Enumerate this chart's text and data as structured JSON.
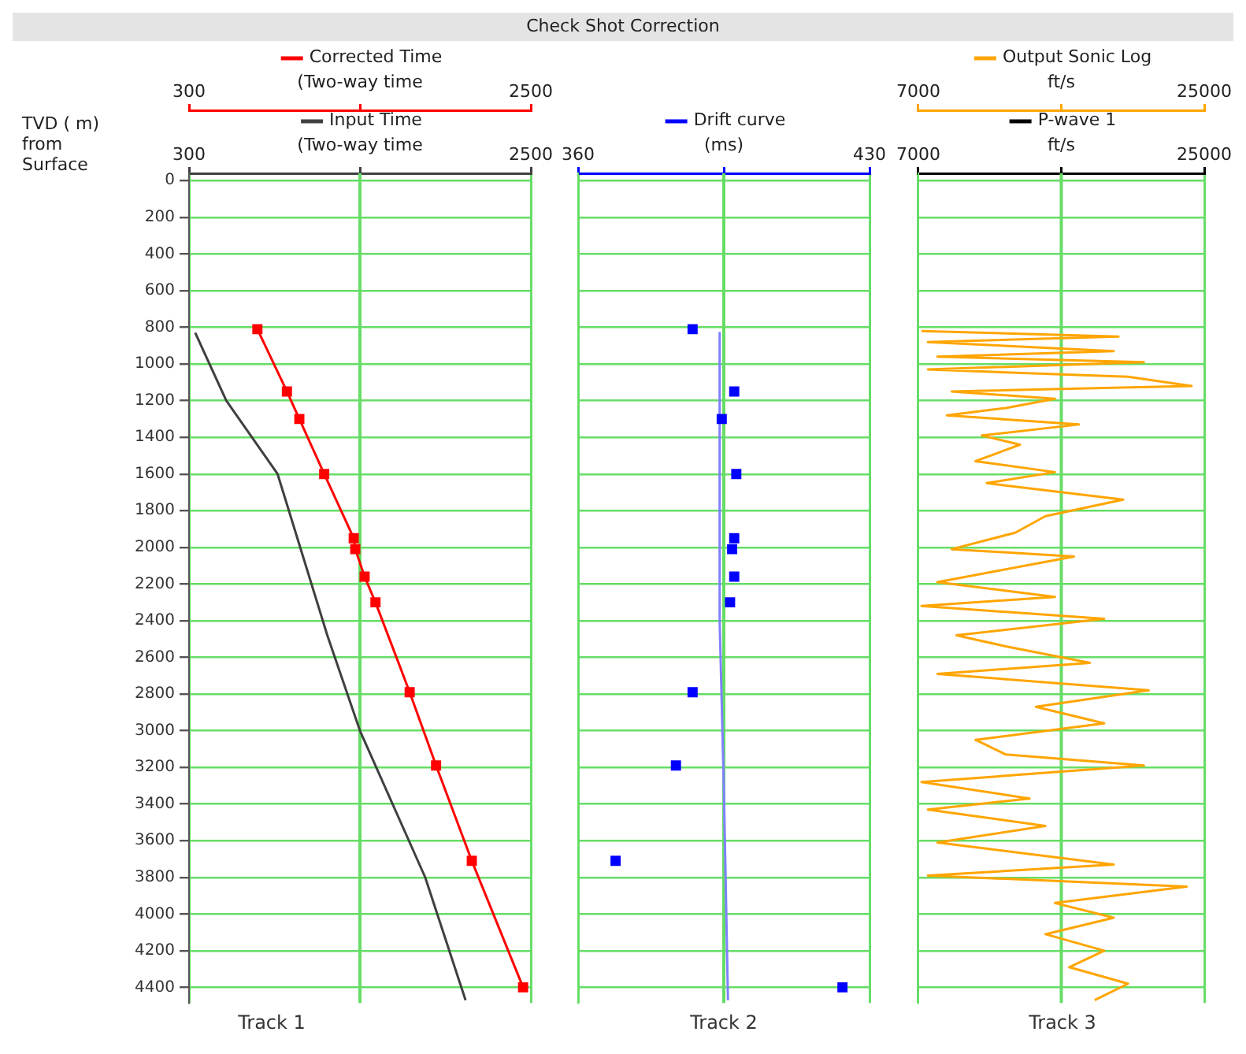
{
  "chart_data": [
    {
      "type": "line",
      "title": "Track 1",
      "ylabel": "TVD ( m) from Surface",
      "annotations": [
        "Check Shot Correction"
      ],
      "legend": "top",
      "grid": true,
      "ylim": [
        4485,
        -40
      ],
      "yticks": [
        0,
        200,
        400,
        600,
        800,
        1000,
        1200,
        1400,
        1600,
        1800,
        2000,
        2200,
        2400,
        2600,
        2800,
        3000,
        3200,
        3400,
        3600,
        3800,
        4000,
        4200,
        4400
      ],
      "ref_lines": [
        {
          "axis": "x",
          "value": 1400,
          "color": "#66dd66"
        }
      ],
      "xlim": [
        300,
        2500
      ],
      "xticks": [
        300,
        {
          "value": 1400,
          "label": null
        },
        2500
      ],
      "xlabel": "(Two-way time",
      "x2lim": [
        300,
        2500
      ],
      "x2ticks": [
        300,
        {
          "value": 1400,
          "label": null
        },
        2500
      ],
      "x2label": "(Two-way time",
      "series": [
        {
          "name": "Corrected Time",
          "type": "line",
          "axis": "x2",
          "color": "#ff0000",
          "marker": "square",
          "x": [
            740,
            930,
            1010,
            1170,
            1360,
            1370,
            1430,
            1500,
            1720,
            1890,
            2120,
            2450
          ],
          "values": [
            810,
            1150,
            1300,
            1600,
            1950,
            2010,
            2160,
            2300,
            2790,
            3190,
            3710,
            4400
          ]
        },
        {
          "name": "Input Time",
          "type": "line",
          "color": "#404040",
          "marker": "none",
          "x": [
            340,
            540,
            870,
            1190,
            1400,
            1820,
            2080
          ],
          "values": [
            830,
            1200,
            1600,
            2480,
            3000,
            3800,
            4470
          ]
        }
      ]
    },
    {
      "type": "line",
      "title": "Track 2",
      "legend": "top",
      "grid": true,
      "tick_labels": "x",
      "ylim": [
        4485,
        -40
      ],
      "yticks": [
        0,
        200,
        400,
        600,
        800,
        1000,
        1200,
        1400,
        1600,
        1800,
        2000,
        2200,
        2400,
        2600,
        2800,
        3000,
        3200,
        3400,
        3600,
        3800,
        4000,
        4200,
        4400
      ],
      "ref_lines": [
        {
          "axis": "x",
          "value": 395,
          "color": "#66dd66"
        }
      ],
      "xlim": [
        360,
        430
      ],
      "xticks": [
        360,
        {
          "value": 395,
          "label": null
        },
        430
      ],
      "xlabel": "(ms)",
      "series": [
        {
          "name": "Drift curve",
          "type": "scatter",
          "color": "#0000ff",
          "marker": "square",
          "x": [
            387.5,
            397.5,
            394.5,
            398,
            397.5,
            397,
            397.5,
            396.5,
            387.5,
            383.5,
            369,
            423.5
          ],
          "values": [
            810,
            1150,
            1300,
            1600,
            1950,
            2010,
            2160,
            2300,
            2790,
            3190,
            3710,
            4400
          ]
        },
        {
          "type": "line",
          "color": "#8080ff",
          "marker": "none",
          "x": [
            394,
            394,
            395,
            396
          ],
          "values": [
            830,
            2400,
            3300,
            4470
          ]
        }
      ]
    },
    {
      "type": "line",
      "title": "Track 3",
      "legend": "top",
      "grid": true,
      "tick_labels": "x",
      "ylim": [
        4485,
        -40
      ],
      "yticks": [
        0,
        200,
        400,
        600,
        800,
        1000,
        1200,
        1400,
        1600,
        1800,
        2000,
        2200,
        2400,
        2600,
        2800,
        3000,
        3200,
        3400,
        3600,
        3800,
        4000,
        4200,
        4400
      ],
      "ref_lines": [
        {
          "axis": "x",
          "value": 16000,
          "color": "#66dd66"
        }
      ],
      "xlim": [
        7000,
        25000
      ],
      "xticks": [
        7000,
        {
          "value": 16000,
          "label": null
        },
        25000
      ],
      "xlabel": "ft/s",
      "x2lim": [
        7000,
        25000
      ],
      "x2ticks": [
        7000,
        {
          "value": 16000,
          "label": null
        },
        25000
      ],
      "x2label": "ft/s",
      "series": [
        {
          "name": "Output Sonic Log",
          "type": "line",
          "axis": "x2",
          "color": "#ffa500",
          "marker": "none",
          "x": [
            7200,
            19600,
            7600,
            19300,
            8200,
            21200,
            7600,
            20200,
            24200,
            9100,
            15600,
            12500,
            8800,
            17100,
            11000,
            13400,
            10600,
            15600,
            11300,
            19900,
            15000,
            13100,
            9100,
            16800,
            11900,
            8200,
            15600,
            7200,
            18700,
            9400,
            12500,
            17800,
            8200,
            21500,
            14400,
            18700,
            10600,
            12500,
            21200,
            7200,
            14000,
            7600,
            15000,
            8200,
            19300,
            7600,
            23900,
            15600,
            19300,
            15000,
            18700,
            16500,
            20200,
            18100
          ],
          "values": [
            820,
            850,
            880,
            930,
            960,
            990,
            1030,
            1070,
            1120,
            1150,
            1190,
            1240,
            1280,
            1330,
            1390,
            1440,
            1530,
            1590,
            1650,
            1740,
            1830,
            1920,
            2010,
            2050,
            2130,
            2190,
            2270,
            2320,
            2390,
            2480,
            2540,
            2630,
            2690,
            2780,
            2870,
            2960,
            3050,
            3130,
            3190,
            3280,
            3370,
            3430,
            3520,
            3610,
            3730,
            3790,
            3850,
            3940,
            4020,
            4110,
            4200,
            4290,
            4380,
            4470
          ]
        },
        {
          "name": "P-wave 1",
          "type": "line",
          "color": "#000000",
          "marker": "none"
        }
      ]
    }
  ]
}
